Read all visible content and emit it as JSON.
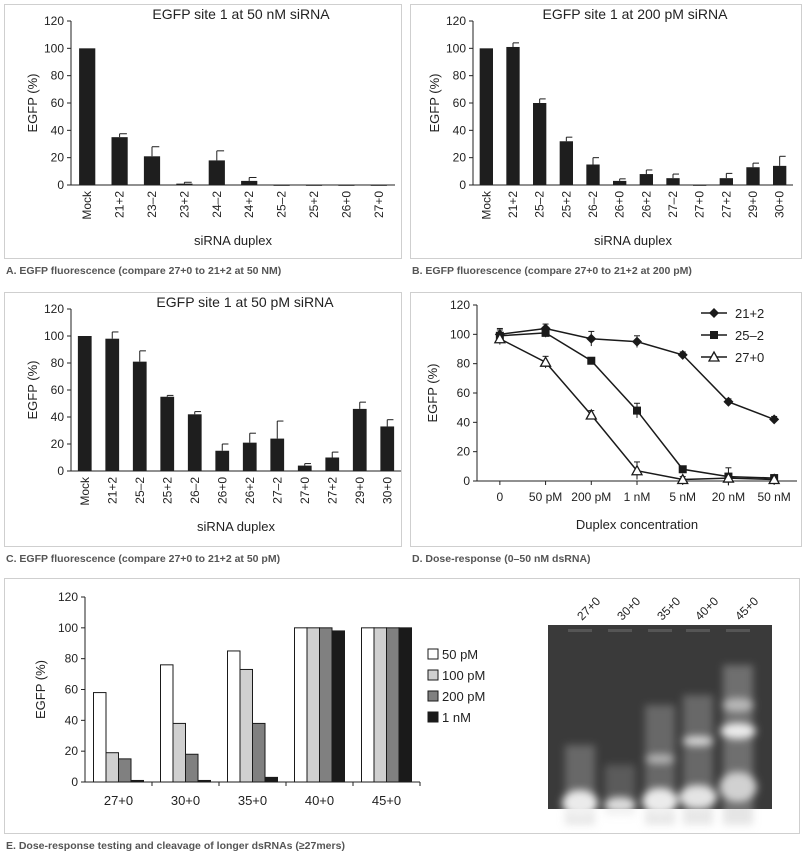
{
  "colors": {
    "bar": "#1e1e1e",
    "pm50": "#ffffff",
    "pm100": "#d0d0d0",
    "pm200": "#808080",
    "nm1": "#1a1a1a",
    "gel_bg": "#3a3a3a",
    "panel_border": "#cfcfcf"
  },
  "captions": {
    "a": "A. EGFP fluorescence (compare 27+0 to 21+2 at 50 NM)",
    "b": "B. EGFP fluorescence (compare 27+0 to 21+2 at 200 pM)",
    "c": "C. EGFP fluorescence (compare 27+0 to 21+2 at 50 pM)",
    "d": "D. Dose-response (0–50 nM dsRNA)",
    "e": "E. Dose-response testing and cleavage of longer dsRNAs (≥27mers)"
  },
  "gel": {
    "lane_labels": [
      "27+0",
      "30+0",
      "35+0",
      "40+0",
      "45+0"
    ]
  },
  "chart_data": [
    {
      "id": "A",
      "type": "bar",
      "title": "EGFP site 1 at 50 nM siRNA",
      "xlabel": "siRNA duplex",
      "ylabel": "EGFP (%)",
      "ylim": [
        0,
        120
      ],
      "yticks": [
        0,
        20,
        40,
        60,
        80,
        100,
        120
      ],
      "categories": [
        "Mock",
        "21+2",
        "23–2",
        "23+2",
        "24–2",
        "24+2",
        "25–2",
        "25+2",
        "26+0",
        "27+0"
      ],
      "values": [
        100,
        35,
        21,
        1,
        18,
        3,
        0,
        0,
        0,
        0
      ],
      "errors": [
        0,
        2.5,
        7,
        1,
        7,
        2.5,
        0,
        0,
        0,
        0
      ]
    },
    {
      "id": "B",
      "type": "bar",
      "title": "EGFP site 1 at 200 pM siRNA",
      "xlabel": "siRNA duplex",
      "ylabel": "EGFP (%)",
      "ylim": [
        0,
        120
      ],
      "yticks": [
        0,
        20,
        40,
        60,
        80,
        100,
        120
      ],
      "categories": [
        "Mock",
        "21+2",
        "25–2",
        "25+2",
        "26–2",
        "26+0",
        "26+2",
        "27–2",
        "27+0",
        "27+2",
        "29+0",
        "30+0"
      ],
      "values": [
        100,
        101,
        60,
        32,
        15,
        3,
        8,
        5,
        0,
        5,
        13,
        14
      ],
      "errors": [
        0,
        3,
        3,
        3,
        5,
        1.5,
        3,
        3,
        0,
        3.5,
        3,
        7
      ]
    },
    {
      "id": "C",
      "type": "bar",
      "title": "EGFP site 1 at 50 pM siRNA",
      "xlabel": "siRNA duplex",
      "ylabel": "EGFP (%)",
      "ylim": [
        0,
        120
      ],
      "yticks": [
        0,
        20,
        40,
        60,
        80,
        100,
        120
      ],
      "categories": [
        "Mock",
        "21+2",
        "25–2",
        "25+2",
        "26–2",
        "26+0",
        "26+2",
        "27–2",
        "27+0",
        "27+2",
        "29+0",
        "30+0"
      ],
      "values": [
        100,
        98,
        81,
        55,
        42,
        15,
        21,
        24,
        4,
        10,
        46,
        33
      ],
      "errors": [
        0,
        5,
        8,
        1,
        2,
        5,
        7,
        13,
        1.5,
        4,
        5,
        5
      ]
    },
    {
      "id": "D",
      "type": "line",
      "xlabel": "Duplex concentration",
      "ylabel": "EGFP (%)",
      "ylim": [
        0,
        120
      ],
      "yticks": [
        0,
        20,
        40,
        60,
        80,
        100,
        120
      ],
      "categories": [
        "0",
        "50 pM",
        "200 pM",
        "1 nM",
        "5 nM",
        "20 nM",
        "50 nM"
      ],
      "legend": "top-right",
      "series": [
        {
          "name": "21+2",
          "marker": "diamond",
          "values": [
            100,
            104,
            97,
            95,
            86,
            54,
            42
          ],
          "errors": [
            4,
            3,
            5,
            4,
            2,
            2,
            2
          ]
        },
        {
          "name": "25–2",
          "marker": "square",
          "values": [
            99,
            101,
            82,
            48,
            8,
            3,
            2
          ],
          "errors": [
            4,
            3,
            2,
            5,
            2,
            6,
            2
          ]
        },
        {
          "name": "27+0",
          "marker": "triangle",
          "values": [
            97,
            81,
            45,
            7,
            1,
            2,
            1
          ],
          "errors": [
            4,
            4,
            3,
            6,
            2,
            2,
            2
          ]
        }
      ]
    },
    {
      "id": "E",
      "type": "bar",
      "ylabel": "EGFP (%)",
      "ylim": [
        0,
        120
      ],
      "yticks": [
        0,
        20,
        40,
        60,
        80,
        100,
        120
      ],
      "categories": [
        "27+0",
        "30+0",
        "35+0",
        "40+0",
        "45+0"
      ],
      "legend": "right",
      "series": [
        {
          "name": "50 pM",
          "values": [
            58,
            76,
            85,
            100,
            100
          ]
        },
        {
          "name": "100 pM",
          "values": [
            19,
            38,
            73,
            100,
            100
          ]
        },
        {
          "name": "200 pM",
          "values": [
            15,
            18,
            38,
            100,
            100
          ]
        },
        {
          "name": "1 nM",
          "values": [
            1,
            1,
            3,
            98,
            100
          ]
        }
      ]
    }
  ]
}
